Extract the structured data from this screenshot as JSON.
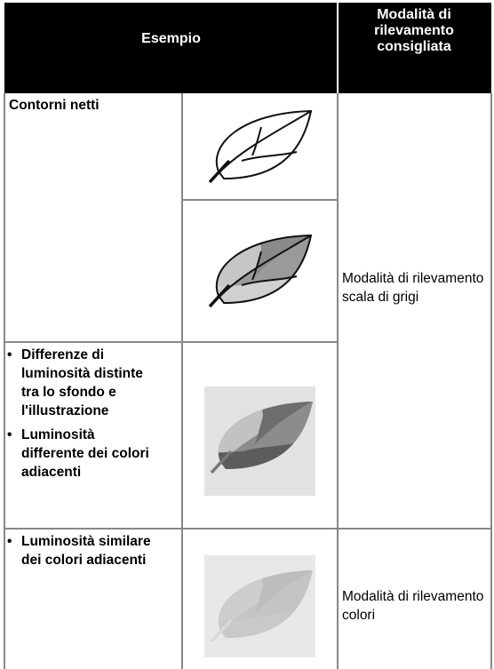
{
  "header": {
    "example": "Esempio",
    "mode": "Modalità di rilevamento consigliata"
  },
  "rows": [
    {
      "label": "Contorni netti"
    },
    {
      "bullets": [
        "Differenze di luminosità distinte tra lo sfondo e l'illustrazione",
        "Luminosità differente dei colori adiacenti"
      ]
    },
    {
      "bullets": [
        "Luminosità similare dei colori adiacenti"
      ]
    }
  ],
  "modes": [
    "Modalità di rilevamento scala di grigi",
    "Modalità di rilevamento colori"
  ]
}
